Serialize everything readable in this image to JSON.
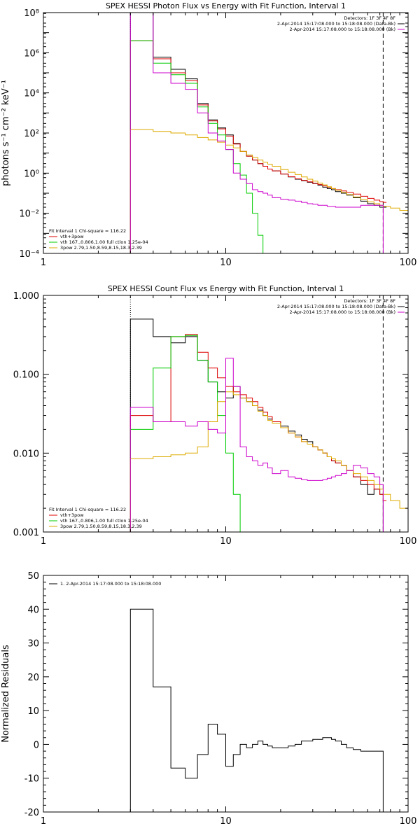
{
  "chart_data": [
    {
      "type": "line",
      "title": "SPEX HESSI Photon Flux vs Energy with Fit Function, Interval 1",
      "xlabel": "",
      "ylabel": "photons s⁻¹ cm⁻² keV⁻¹",
      "xscale": "log",
      "yscale": "log",
      "xlim": [
        1,
        100
      ],
      "ylim": [
        0.0001,
        100000000
      ],
      "x_ticks": [
        {
          "v": 1,
          "label": "1"
        },
        {
          "v": 10,
          "label": "10"
        },
        {
          "v": 100,
          "label": "100"
        }
      ],
      "y_ticks": [
        {
          "v": 0.0001,
          "label": "10⁻⁴"
        },
        {
          "v": 0.01,
          "label": "10⁻²"
        },
        {
          "v": 1,
          "label": "10⁰"
        },
        {
          "v": 100,
          "label": "10²"
        },
        {
          "v": 10000,
          "label": "10⁴"
        },
        {
          "v": 1000000,
          "label": "10⁶"
        },
        {
          "v": 100000000,
          "label": "10⁸"
        }
      ],
      "vlines": [
        {
          "x": 3,
          "style": "dotted",
          "color": "#000000"
        },
        {
          "x": 73,
          "style": "dashed",
          "color": "#000000"
        }
      ],
      "legend_top_right": [
        {
          "text": "Detectors: 1F 3F 4F 8F",
          "color": "#000000"
        },
        {
          "text": "2-Apr-2014 15:17:08.000 to 15:18:08.000 (Data-Bk)",
          "color": "#000000"
        },
        {
          "text": "2-Apr-2014 15:17:08.000 to 15:18:08.000 (Bk)",
          "color": "#cc00cc"
        }
      ],
      "legend_bottom_left": [
        {
          "text": "Fit Interval 1   Chi-square = 116.22",
          "color": "#000000"
        },
        {
          "text": "vth+3pow",
          "color": "#dd0000"
        },
        {
          "text": "vth 167.,0.806,1.00  full ctlon 1.25e-04",
          "color": "#00cc00"
        },
        {
          "text": "3pow 2.79,1.50,8.59,8.15,18.3,2.39",
          "color": "#ddaa00"
        }
      ],
      "series": [
        {
          "name": "",
          "color": "#000000",
          "x": [
            3,
            4,
            5,
            6,
            7,
            8,
            9,
            10,
            11,
            12,
            13,
            14,
            15,
            16,
            17,
            18,
            20,
            22,
            24,
            26,
            28,
            30,
            32,
            34,
            36,
            38,
            40,
            43,
            46,
            50,
            55,
            60,
            65,
            70,
            73
          ],
          "y": [
            100000000.0,
            600000.0,
            150000.0,
            50000.0,
            3000.0,
            450,
            180,
            80,
            30,
            12,
            7,
            4.5,
            3,
            2.2,
            1.6,
            1.3,
            0.9,
            0.65,
            0.5,
            0.42,
            0.35,
            0.3,
            0.25,
            0.2,
            0.17,
            0.15,
            0.12,
            0.1,
            0.08,
            0.06,
            0.04,
            0.03,
            0.025,
            0.02,
            0.02
          ]
        },
        {
          "name": "",
          "color": "#dd0000",
          "x": [
            3,
            4,
            5,
            6,
            7,
            8,
            9,
            10,
            11,
            12,
            13,
            14,
            15,
            16,
            17,
            18,
            20,
            22,
            24,
            26,
            28,
            30,
            32,
            34,
            36,
            38,
            40,
            43,
            46,
            50,
            55,
            60,
            65,
            70,
            73
          ],
          "y": [
            4000000.0,
            500000.0,
            100000.0,
            40000.0,
            2500.0,
            400,
            160,
            70,
            28,
            12,
            7,
            4.5,
            3,
            2.2,
            1.6,
            1.3,
            0.9,
            0.66,
            0.52,
            0.44,
            0.37,
            0.31,
            0.27,
            0.23,
            0.2,
            0.17,
            0.15,
            0.13,
            0.11,
            0.09,
            0.07,
            0.055,
            0.045,
            0.038,
            0.035
          ]
        },
        {
          "name": "",
          "color": "#00cc00",
          "x": [
            3,
            4,
            5,
            6,
            7,
            8,
            9,
            10,
            11,
            12,
            13,
            14,
            15,
            16
          ],
          "y": [
            4000000.0,
            300000.0,
            80000.0,
            30000.0,
            2000.0,
            300,
            80,
            15,
            3,
            0.8,
            0.1,
            0.01,
            0.0008,
            0.0001
          ]
        },
        {
          "name": "",
          "color": "#ddaa00",
          "x": [
            3,
            4,
            5,
            6,
            7,
            8,
            9,
            10,
            11,
            12,
            13,
            14,
            15,
            16,
            17,
            18,
            20,
            22,
            24,
            26,
            28,
            30,
            32,
            34,
            36,
            38,
            40,
            43,
            46,
            50,
            55,
            60,
            65,
            70,
            73,
            80,
            90,
            100
          ],
          "y": [
            150,
            120,
            100,
            80,
            60,
            45,
            35,
            25,
            18,
            12,
            8,
            6,
            4.5,
            3.5,
            2.8,
            2.2,
            1.5,
            1.1,
            0.85,
            0.65,
            0.5,
            0.4,
            0.32,
            0.26,
            0.21,
            0.17,
            0.14,
            0.11,
            0.085,
            0.065,
            0.048,
            0.037,
            0.03,
            0.025,
            0.022,
            0.018,
            0.014,
            0.012
          ]
        },
        {
          "name": "",
          "color": "#cc00cc",
          "x": [
            3,
            4,
            5,
            6,
            7,
            8,
            9,
            10,
            11,
            12,
            13,
            14,
            15,
            16,
            17,
            18,
            20,
            22,
            24,
            26,
            28,
            30,
            32,
            34,
            36,
            38,
            40,
            43,
            46,
            50,
            55,
            60,
            65,
            70,
            73
          ],
          "y": [
            100000000.0,
            100000.0,
            30000.0,
            15000.0,
            1000.0,
            100,
            40,
            15,
            1,
            0.5,
            0.3,
            0.15,
            0.12,
            0.1,
            0.08,
            0.06,
            0.05,
            0.045,
            0.04,
            0.035,
            0.03,
            0.028,
            0.025,
            0.025,
            0.022,
            0.022,
            0.02,
            0.02,
            0.02,
            0.02,
            0.025,
            0.025,
            0.025,
            0.025,
            0.0001
          ]
        }
      ]
    },
    {
      "type": "line",
      "title": "SPEX HESSI Count Flux vs Energy with Fit Function, Interval 1",
      "xlabel": "",
      "ylabel": "",
      "xscale": "log",
      "yscale": "log",
      "xlim": [
        1,
        100
      ],
      "ylim": [
        0.001,
        1
      ],
      "x_ticks": [
        {
          "v": 1,
          "label": "1"
        },
        {
          "v": 10,
          "label": "10"
        },
        {
          "v": 100,
          "label": "100"
        }
      ],
      "y_ticks": [
        {
          "v": 0.001,
          "label": "0.001"
        },
        {
          "v": 0.01,
          "label": "0.010"
        },
        {
          "v": 0.1,
          "label": "0.100"
        },
        {
          "v": 1,
          "label": "1.000"
        }
      ],
      "vlines": [
        {
          "x": 3,
          "style": "dotted",
          "color": "#000000"
        },
        {
          "x": 73,
          "style": "dashed",
          "color": "#000000"
        }
      ],
      "legend_top_right": [
        {
          "text": "Detectors: 1F 3F 4F 8F",
          "color": "#000000"
        },
        {
          "text": "2-Apr-2014 15:17:08.000 to 15:18:08.000 (Data-Bk)",
          "color": "#000000"
        },
        {
          "text": "2-Apr-2014 15:17:08.000 to 15:18:08.000 (Bk)",
          "color": "#cc00cc"
        }
      ],
      "legend_bottom_left": [
        {
          "text": "Fit Interval 1   Chi-square = 116.22",
          "color": "#000000"
        },
        {
          "text": "vth+3pow",
          "color": "#dd0000"
        },
        {
          "text": "vth 167.,0.806,1.00  full ctlon 1.25e-04",
          "color": "#00cc00"
        },
        {
          "text": "3pow 2.79,1.50,8.59,8.15,18.3,2.39",
          "color": "#ddaa00"
        }
      ],
      "series": [
        {
          "name": "",
          "color": "#000000",
          "x": [
            3,
            4,
            5,
            6,
            7,
            8,
            9,
            10,
            11,
            12,
            13,
            14,
            15,
            16,
            17,
            18,
            20,
            22,
            24,
            26,
            28,
            30,
            32,
            34,
            36,
            38,
            40,
            43,
            46,
            50,
            55,
            60,
            65,
            70,
            73
          ],
          "y": [
            0.5,
            0.3,
            0.25,
            0.3,
            0.15,
            0.08,
            0.06,
            0.05,
            0.07,
            0.05,
            0.045,
            0.04,
            0.035,
            0.03,
            0.027,
            0.025,
            0.022,
            0.019,
            0.017,
            0.015,
            0.014,
            0.012,
            0.011,
            0.01,
            0.009,
            0.008,
            0.0075,
            0.007,
            0.006,
            0.005,
            0.004,
            0.003,
            0.0035,
            0.003,
            0.001
          ]
        },
        {
          "name": "",
          "color": "#dd0000",
          "x": [
            3,
            4,
            5,
            6,
            7,
            8,
            9,
            10,
            11,
            12,
            13,
            14,
            15,
            16,
            17,
            18,
            20,
            22,
            24,
            26,
            28,
            30,
            32,
            34,
            36,
            38,
            40,
            43,
            46,
            50,
            55,
            60,
            65,
            70,
            73
          ],
          "y": [
            0.03,
            0.025,
            0.3,
            0.32,
            0.19,
            0.12,
            0.09,
            0.07,
            0.06,
            0.055,
            0.05,
            0.045,
            0.038,
            0.033,
            0.029,
            0.025,
            0.021,
            0.018,
            0.016,
            0.014,
            0.013,
            0.012,
            0.011,
            0.01,
            0.009,
            0.008,
            0.0075,
            0.007,
            0.006,
            0.005,
            0.0045,
            0.004,
            0.0035,
            0.003,
            0.0025
          ]
        },
        {
          "name": "",
          "color": "#00cc00",
          "x": [
            3,
            4,
            5,
            6,
            7,
            8,
            9,
            10,
            11,
            12,
            13
          ],
          "y": [
            0.02,
            0.12,
            0.3,
            0.31,
            0.15,
            0.08,
            0.03,
            0.01,
            0.003,
            0.001,
            0.001
          ]
        },
        {
          "name": "",
          "color": "#ddaa00",
          "x": [
            3,
            4,
            5,
            6,
            7,
            8,
            9,
            10,
            11,
            12,
            13,
            14,
            15,
            16,
            17,
            18,
            20,
            22,
            24,
            26,
            28,
            30,
            32,
            34,
            36,
            38,
            40,
            43,
            46,
            50,
            55,
            60,
            65,
            70,
            73,
            80,
            90,
            100
          ],
          "y": [
            0.0085,
            0.009,
            0.0095,
            0.01,
            0.012,
            0.025,
            0.045,
            0.06,
            0.055,
            0.05,
            0.045,
            0.04,
            0.034,
            0.03,
            0.026,
            0.024,
            0.021,
            0.018,
            0.016,
            0.014,
            0.013,
            0.012,
            0.011,
            0.01,
            0.009,
            0.0085,
            0.008,
            0.007,
            0.006,
            0.0055,
            0.005,
            0.0045,
            0.004,
            0.0035,
            0.003,
            0.0025,
            0.002,
            0.0017
          ]
        },
        {
          "name": "",
          "color": "#cc00cc",
          "x": [
            3,
            4,
            5,
            6,
            7,
            8,
            9,
            10,
            11,
            12,
            13,
            14,
            15,
            16,
            17,
            18,
            20,
            22,
            24,
            26,
            28,
            30,
            32,
            34,
            36,
            38,
            40,
            43,
            46,
            50,
            55,
            60,
            65,
            70,
            73
          ],
          "y": [
            0.038,
            0.025,
            0.025,
            0.022,
            0.025,
            0.02,
            0.018,
            0.16,
            0.07,
            0.012,
            0.009,
            0.008,
            0.007,
            0.0075,
            0.0065,
            0.0055,
            0.006,
            0.005,
            0.0048,
            0.0046,
            0.0045,
            0.0045,
            0.0045,
            0.0046,
            0.0048,
            0.005,
            0.0052,
            0.0055,
            0.006,
            0.007,
            0.0065,
            0.0055,
            0.005,
            0.004,
            0.001
          ]
        }
      ]
    },
    {
      "type": "line",
      "title": "",
      "xlabel": "",
      "ylabel": "Normalized Residuals",
      "xscale": "log",
      "yscale": "linear",
      "xlim": [
        1,
        100
      ],
      "ylim": [
        -20,
        50
      ],
      "x_ticks": [
        {
          "v": 1,
          "label": "1"
        },
        {
          "v": 10,
          "label": "10"
        },
        {
          "v": 100,
          "label": "100"
        }
      ],
      "y_ticks": [
        {
          "v": -20,
          "label": "-20"
        },
        {
          "v": -10,
          "label": "-10"
        },
        {
          "v": 0,
          "label": "0"
        },
        {
          "v": 10,
          "label": "10"
        },
        {
          "v": 20,
          "label": "20"
        },
        {
          "v": 30,
          "label": "30"
        },
        {
          "v": 40,
          "label": "40"
        },
        {
          "v": 50,
          "label": "50"
        }
      ],
      "vlines": [],
      "legend_top_right": [],
      "legend_bottom_left": [],
      "legend_top_left": [
        {
          "text": "1.  2-Apr-2014 15:17:08.000 to 15:18:08.000",
          "color": "#000000"
        }
      ],
      "series": [
        {
          "name": "1.  2-Apr-2014 15:17:08.000 to 15:18:08.000",
          "color": "#000000",
          "x": [
            3,
            4,
            5,
            6,
            7,
            8,
            9,
            10,
            11,
            12,
            13,
            14,
            15,
            16,
            17,
            18,
            20,
            22,
            24,
            26,
            28,
            30,
            32,
            34,
            36,
            38,
            40,
            43,
            46,
            50,
            55,
            60,
            65,
            70,
            73
          ],
          "y": [
            40,
            17,
            -7,
            -10,
            -3,
            6,
            3,
            -6.5,
            -3,
            0,
            -1,
            0,
            1,
            0,
            -0.5,
            -1,
            -1,
            -0.5,
            0,
            1,
            1,
            1.5,
            1.5,
            2,
            2,
            1.5,
            1,
            0,
            -1,
            -1.5,
            -2,
            -2,
            -2,
            -2,
            -20
          ]
        }
      ]
    }
  ]
}
